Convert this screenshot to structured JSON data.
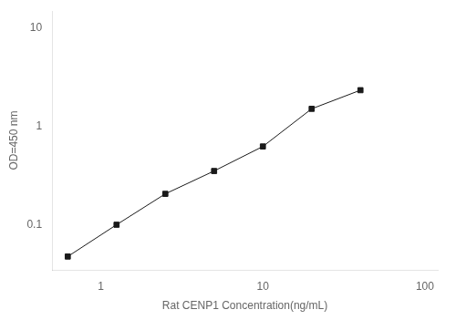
{
  "chart_data": {
    "type": "line",
    "x": [
      0.625,
      1.25,
      2.5,
      5,
      10,
      20,
      40
    ],
    "values": [
      0.048,
      0.101,
      0.208,
      0.355,
      0.63,
      1.52,
      2.35
    ],
    "xlabel": "Rat CENP1 Concentration(ng/mL)",
    "ylabel": "OD=450 nm",
    "xlim": [
      0.5,
      120
    ],
    "ylim": [
      0.035,
      15
    ],
    "xticks": [
      1,
      10,
      100
    ],
    "yticks": [
      0.1,
      1,
      10
    ],
    "log": true,
    "grid": false,
    "color": "#1a1a1a",
    "marker": "square",
    "line_style": "solid"
  }
}
